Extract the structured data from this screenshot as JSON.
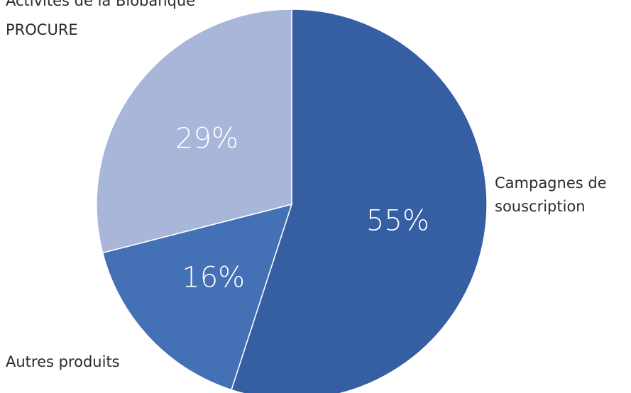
{
  "chart_data": {
    "type": "pie",
    "title": "",
    "slices": [
      {
        "label_lines": [
          "Campagnes de",
          "souscription"
        ],
        "value": 55,
        "display": "55%",
        "color": "#365ea3"
      },
      {
        "label_lines": [
          "Autres produits"
        ],
        "value": 16,
        "display": "16%",
        "color": "#4470b5"
      },
      {
        "label_lines": [
          "Activités de la Biobanque",
          "PROCURE"
        ],
        "value": 29,
        "display": "29%",
        "color": "#a8b6da"
      }
    ],
    "start_angle_deg": 0,
    "direction": "clockwise",
    "slice_border_color": "#ffffff",
    "legend": "none"
  }
}
